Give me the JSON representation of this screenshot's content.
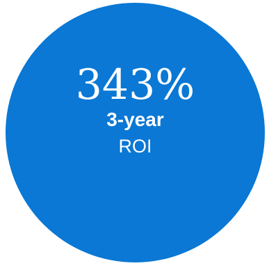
{
  "stat": {
    "value": "343%",
    "period": "3-year",
    "metric": "ROI"
  },
  "colors": {
    "circle": "#0a78d4",
    "text": "#ffffff",
    "background": "#ffffff"
  }
}
